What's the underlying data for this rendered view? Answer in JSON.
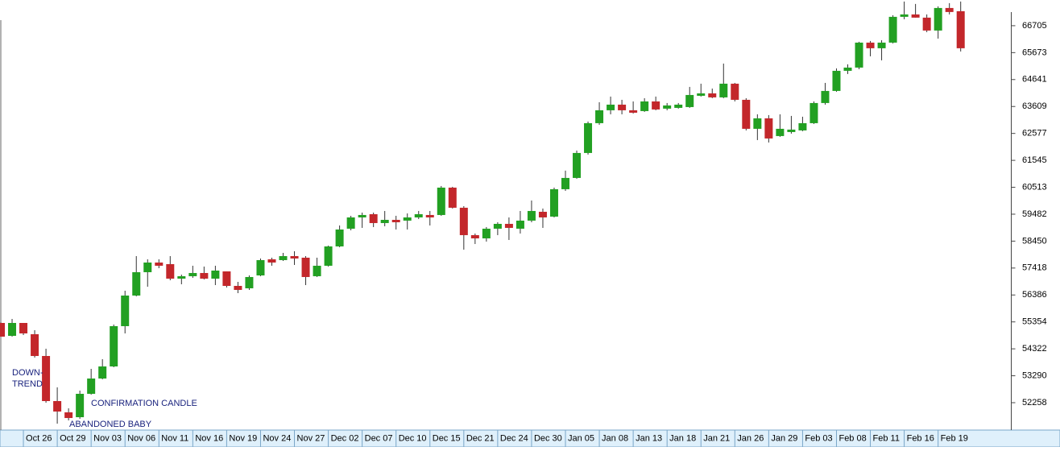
{
  "chart_data": {
    "type": "candlestick",
    "categories": [
      null,
      null,
      "Oct 26",
      null,
      null,
      "Oct 29",
      null,
      null,
      "Nov 03",
      null,
      null,
      "Nov 06",
      null,
      null,
      "Nov 11",
      null,
      null,
      "Nov 16",
      null,
      null,
      "Nov 19",
      null,
      null,
      "Nov 24",
      null,
      null,
      "Nov 27",
      null,
      null,
      "Dec 02",
      null,
      null,
      "Dec 07",
      null,
      null,
      "Dec 10",
      null,
      null,
      "Dec 15",
      null,
      null,
      "Dec 21",
      null,
      null,
      "Dec 24",
      null,
      null,
      "Dec 30",
      null,
      null,
      "Jan 05",
      null,
      null,
      "Jan 08",
      null,
      null,
      "Jan 13",
      null,
      null,
      "Jan 18",
      null,
      null,
      "Jan 21",
      null,
      null,
      "Jan 26",
      null,
      null,
      "Jan 29",
      null,
      null,
      "Feb 03",
      null,
      null,
      "Feb 08",
      null,
      null,
      "Feb 11",
      null,
      null,
      "Feb 16",
      null,
      null,
      "Feb 19",
      null,
      null
    ],
    "open": [
      55314,
      54820,
      55314,
      54882,
      54048,
      52320,
      51888,
      51702,
      52598,
      53184,
      53647,
      55191,
      56364,
      57259,
      57629,
      57568,
      57012,
      57105,
      57228,
      57012,
      57290,
      56734,
      56642,
      57135,
      57753,
      57722,
      57876,
      57815,
      57105,
      57506,
      58247,
      58926,
      59358,
      59482,
      59142,
      59265,
      59235,
      59358,
      59451,
      59451,
      60500,
      59729,
      58679,
      58555,
      58926,
      59111,
      58926,
      59235,
      59574,
      59389,
      60439,
      60871,
      61828,
      62970,
      63464,
      63680,
      63464,
      63433,
      63803,
      63526,
      63556,
      63587,
      64019,
      64112,
      63958,
      64483,
      63865,
      62754,
      63155,
      62476,
      62630,
      62692,
      62970,
      63742,
      64205,
      64976,
      65100,
      66057,
      65841,
      66057,
      67045,
      67137,
      67014,
      66520,
      67384,
      67261
    ],
    "high": [
      55345,
      55468,
      55314,
      55036,
      54326,
      52845,
      52042,
      52721,
      53555,
      53925,
      55252,
      56549,
      57876,
      57753,
      57753,
      57876,
      57166,
      57506,
      57475,
      57506,
      57290,
      56888,
      57135,
      57784,
      57815,
      58000,
      58062,
      57876,
      57815,
      58278,
      59049,
      59420,
      59543,
      59543,
      59605,
      59420,
      59512,
      59605,
      59605,
      60562,
      60531,
      59790,
      58741,
      58988,
      59173,
      59358,
      59605,
      60006,
      59698,
      60500,
      61149,
      61920,
      63032,
      63773,
      63989,
      63865,
      63803,
      63927,
      63989,
      63742,
      63742,
      64359,
      64483,
      64297,
      65254,
      64513,
      63927,
      63309,
      63279,
      63309,
      63248,
      63217,
      63803,
      64513,
      65069,
      65223,
      66088,
      66119,
      66149,
      67106,
      67631,
      67539,
      67137,
      67446,
      67570,
      67631
    ],
    "low": [
      54789,
      54789,
      54851,
      53987,
      52258,
      51455,
      51579,
      51641,
      52567,
      53153,
      53616,
      54913,
      56333,
      56703,
      57413,
      56950,
      56796,
      57043,
      56981,
      56765,
      56672,
      56456,
      56580,
      57105,
      57506,
      57691,
      57537,
      56765,
      57074,
      57475,
      58216,
      58864,
      58957,
      58988,
      59019,
      58895,
      58895,
      59296,
      59049,
      59420,
      59698,
      58123,
      58339,
      58432,
      58679,
      58494,
      58741,
      59173,
      58957,
      59358,
      60377,
      60840,
      61766,
      62908,
      63309,
      63309,
      63340,
      63402,
      63464,
      63464,
      63526,
      63556,
      63989,
      63927,
      63927,
      63803,
      62692,
      62322,
      62229,
      62445,
      62569,
      62661,
      62939,
      63680,
      64174,
      64853,
      65038,
      65532,
      65378,
      66026,
      66952,
      67014,
      66458,
      66211,
      67137,
      65717
    ],
    "close": [
      54789,
      55314,
      54913,
      54048,
      52320,
      51919,
      51671,
      52598,
      53184,
      53647,
      55191,
      56364,
      57259,
      57629,
      57506,
      57012,
      57105,
      57228,
      57012,
      57321,
      56734,
      56580,
      57074,
      57722,
      57629,
      57876,
      57784,
      57074,
      57506,
      58247,
      58895,
      59358,
      59451,
      59142,
      59265,
      59173,
      59358,
      59482,
      59358,
      60500,
      59729,
      58679,
      58555,
      58926,
      59111,
      58957,
      59235,
      59605,
      59358,
      60439,
      60871,
      61828,
      62970,
      63464,
      63680,
      63464,
      63371,
      63803,
      63495,
      63649,
      63680,
      64050,
      64112,
      63958,
      64483,
      63865,
      62754,
      63155,
      62383,
      62754,
      62723,
      62970,
      63742,
      64205,
      64976,
      65100,
      66057,
      65841,
      66057,
      67045,
      67137,
      67014,
      66520,
      67384,
      67230,
      65841
    ],
    "up_color": "#22a022",
    "down_color": "#c3272b",
    "ylim": [
      51240,
      67690
    ],
    "yticks": [
      52258,
      53290,
      54322,
      55354,
      56386,
      57418,
      58450,
      59482,
      60513,
      61545,
      62577,
      63609,
      64641,
      65673,
      66705
    ],
    "annotations": [
      "DOWN-",
      "TREND",
      "CONFIRMATION CANDLE",
      "ABANDONED BABY"
    ]
  }
}
